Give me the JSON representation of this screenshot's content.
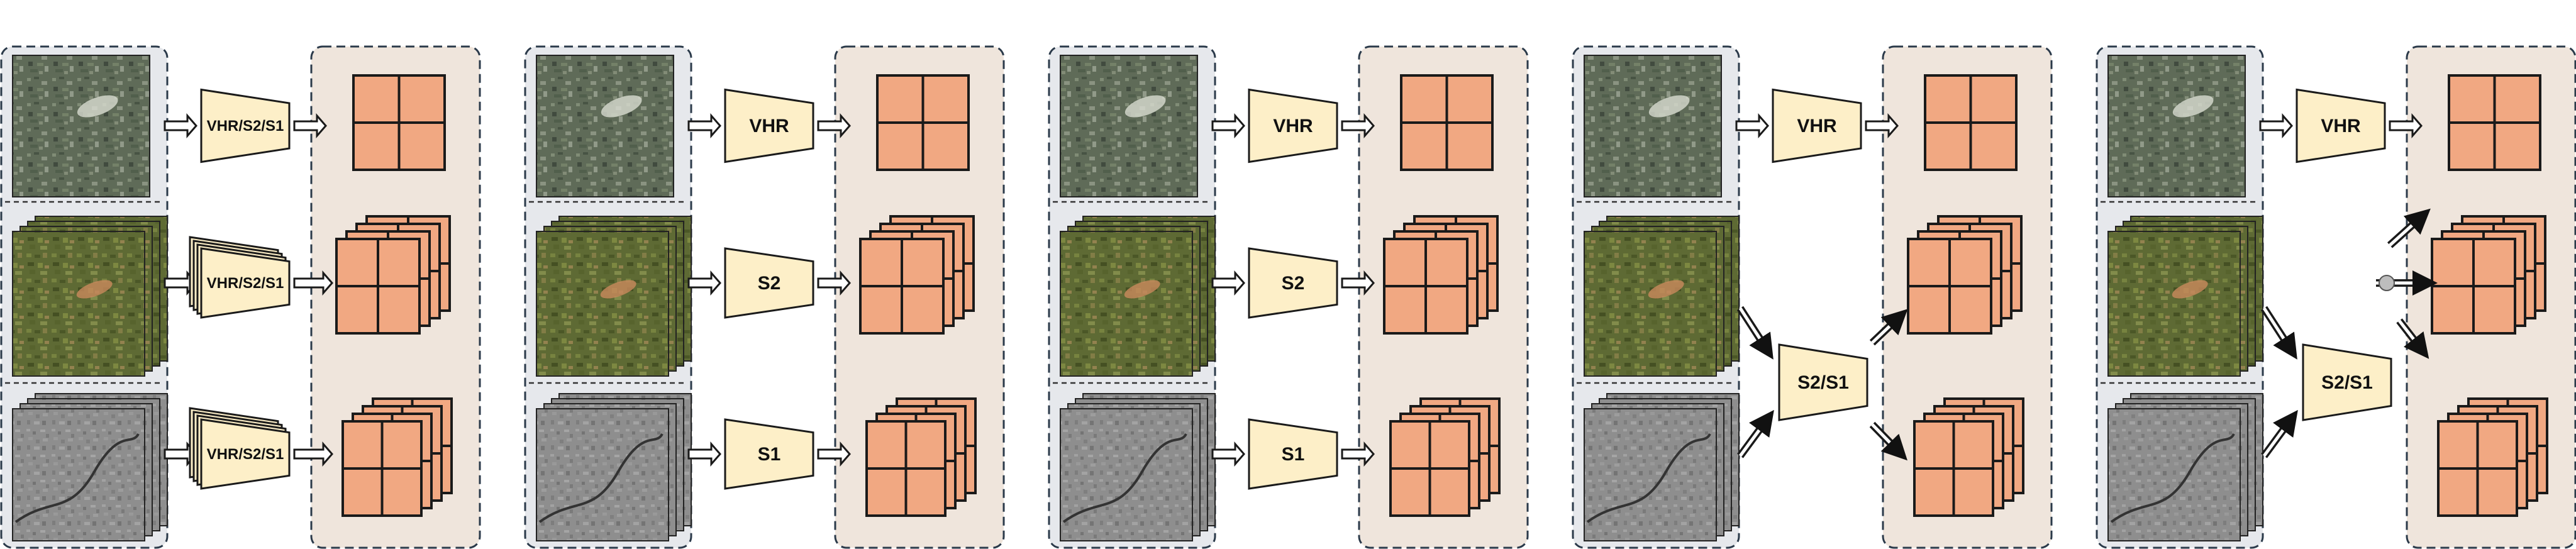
{
  "colors": {
    "input_panel": "#e6e8ec",
    "output_panel": "#efe5dc",
    "panel_border": "#2b3a4a",
    "encoder_fill": "#fdefc8",
    "token_fill": "#f1a882",
    "stroke": "#1a1a1a",
    "optical_top": "#5f6b58",
    "optical_s2": "#5e6a34",
    "sar": "#8e8e8e",
    "fusion_dot": "#bdbdbd"
  },
  "modalities": [
    "VHR",
    "S2",
    "S1"
  ],
  "panels": [
    {
      "id": "shared-encoder",
      "encoders": [
        {
          "label": "VHR/S2/S1",
          "rows": [
            0
          ]
        },
        {
          "label": "VHR/S2/S1",
          "rows": [
            1
          ]
        },
        {
          "label": "VHR/S2/S1",
          "rows": [
            2
          ]
        }
      ]
    },
    {
      "id": "separate-encoders-a",
      "encoders": [
        {
          "label": "VHR",
          "rows": [
            0
          ]
        },
        {
          "label": "S2",
          "rows": [
            1
          ]
        },
        {
          "label": "S1",
          "rows": [
            2
          ]
        }
      ]
    },
    {
      "id": "separate-encoders-b",
      "encoders": [
        {
          "label": "VHR",
          "rows": [
            0
          ]
        },
        {
          "label": "S2",
          "rows": [
            1
          ]
        },
        {
          "label": "S1",
          "rows": [
            2
          ]
        }
      ]
    },
    {
      "id": "joint-s2-s1-encoder",
      "encoders": [
        {
          "label": "VHR",
          "rows": [
            0
          ]
        },
        {
          "label": "S2/S1",
          "rows": [
            1,
            2
          ]
        }
      ]
    },
    {
      "id": "fused-s2-s1-encoder",
      "encoders": [
        {
          "label": "VHR",
          "rows": [
            0
          ]
        },
        {
          "label": "S2/S1",
          "rows": [
            1,
            2
          ],
          "fusion": true
        }
      ]
    }
  ]
}
